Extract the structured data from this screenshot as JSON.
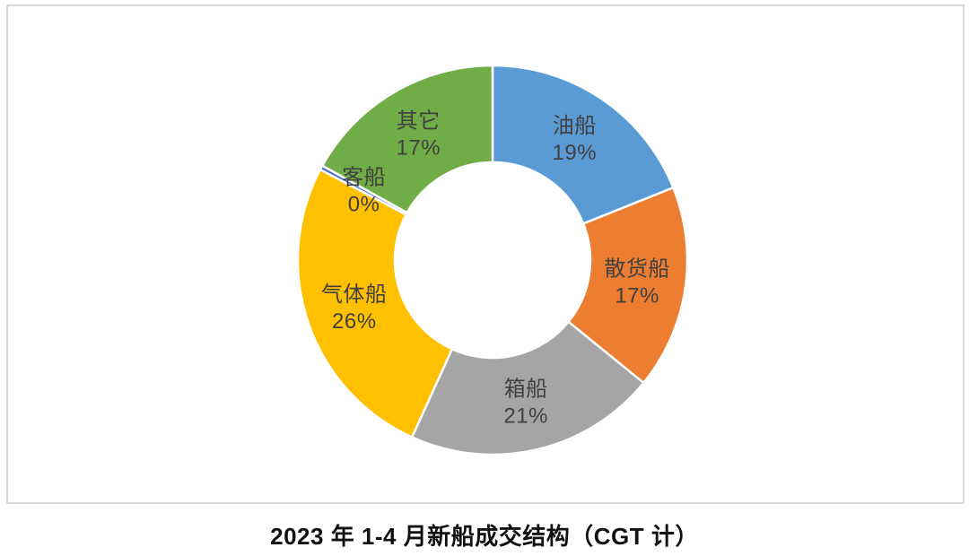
{
  "page": {
    "background": "#ffffff",
    "panel_border_color": "#d9d9d9"
  },
  "title": "2023 年 1-4 月新船成交结构（CGT 计）",
  "chart_data": {
    "type": "pie",
    "subtype": "donut",
    "title": "2023 年 1-4 月新船成交结构（CGT 计）",
    "categories": [
      "油船",
      "散货船",
      "箱船",
      "气体船",
      "客船",
      "其它"
    ],
    "values": [
      19,
      17,
      21,
      26,
      0,
      17
    ],
    "percent_labels": [
      "19%",
      "17%",
      "21%",
      "26%",
      "0%",
      "17%"
    ],
    "colors": [
      "#5b9bd5",
      "#ed7d31",
      "#a5a5a5",
      "#ffc000",
      "#4472c4",
      "#70ad47"
    ],
    "label_color": "#404040",
    "slice_border_color": "#ffffff",
    "start_angle_deg": 0,
    "direction": "clockwise",
    "hole_ratio": 0.5,
    "legend": "none",
    "data_labels": "category name and percent inside slices"
  }
}
